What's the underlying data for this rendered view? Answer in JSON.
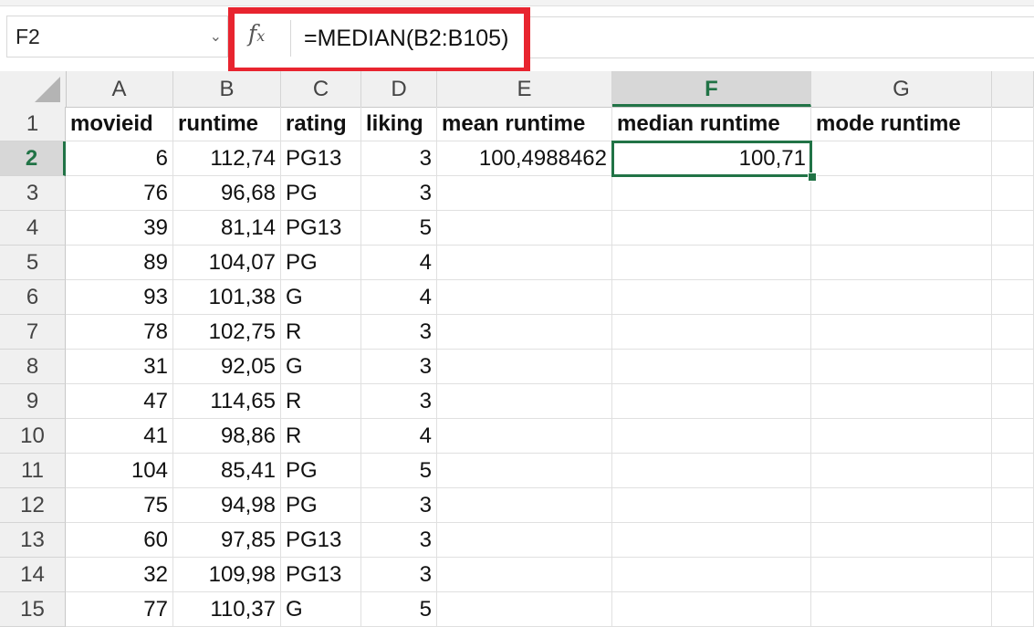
{
  "formula_bar": {
    "name_box": "F2",
    "fx_symbol": "fx",
    "formula": "=MEDIAN(B2:B105)"
  },
  "columns": [
    "A",
    "B",
    "C",
    "D",
    "E",
    "F",
    "G"
  ],
  "active_column": "F",
  "active_row": "2",
  "rows": [
    {
      "n": "1",
      "A": "movieid",
      "B": "runtime",
      "C": "rating",
      "D": "liking",
      "E": "mean runtime",
      "F": "median runtime",
      "G": "mode runtime"
    },
    {
      "n": "2",
      "A": "6",
      "B": "112,74",
      "C": "PG13",
      "D": "3",
      "E": "100,4988462",
      "F": "100,71",
      "G": ""
    },
    {
      "n": "3",
      "A": "76",
      "B": "96,68",
      "C": "PG",
      "D": "3",
      "E": "",
      "F": "",
      "G": ""
    },
    {
      "n": "4",
      "A": "39",
      "B": "81,14",
      "C": "PG13",
      "D": "5",
      "E": "",
      "F": "",
      "G": ""
    },
    {
      "n": "5",
      "A": "89",
      "B": "104,07",
      "C": "PG",
      "D": "4",
      "E": "",
      "F": "",
      "G": ""
    },
    {
      "n": "6",
      "A": "93",
      "B": "101,38",
      "C": "G",
      "D": "4",
      "E": "",
      "F": "",
      "G": ""
    },
    {
      "n": "7",
      "A": "78",
      "B": "102,75",
      "C": "R",
      "D": "3",
      "E": "",
      "F": "",
      "G": ""
    },
    {
      "n": "8",
      "A": "31",
      "B": "92,05",
      "C": "G",
      "D": "3",
      "E": "",
      "F": "",
      "G": ""
    },
    {
      "n": "9",
      "A": "47",
      "B": "114,65",
      "C": "R",
      "D": "3",
      "E": "",
      "F": "",
      "G": ""
    },
    {
      "n": "10",
      "A": "41",
      "B": "98,86",
      "C": "R",
      "D": "4",
      "E": "",
      "F": "",
      "G": ""
    },
    {
      "n": "11",
      "A": "104",
      "B": "85,41",
      "C": "PG",
      "D": "5",
      "E": "",
      "F": "",
      "G": ""
    },
    {
      "n": "12",
      "A": "75",
      "B": "94,98",
      "C": "PG",
      "D": "3",
      "E": "",
      "F": "",
      "G": ""
    },
    {
      "n": "13",
      "A": "60",
      "B": "97,85",
      "C": "PG13",
      "D": "3",
      "E": "",
      "F": "",
      "G": ""
    },
    {
      "n": "14",
      "A": "32",
      "B": "109,98",
      "C": "PG13",
      "D": "3",
      "E": "",
      "F": "",
      "G": ""
    },
    {
      "n": "15",
      "A": "77",
      "B": "110,37",
      "C": "G",
      "D": "5",
      "E": "",
      "F": "",
      "G": ""
    }
  ],
  "colors": {
    "accent": "#217346",
    "highlight": "#e8242f"
  }
}
